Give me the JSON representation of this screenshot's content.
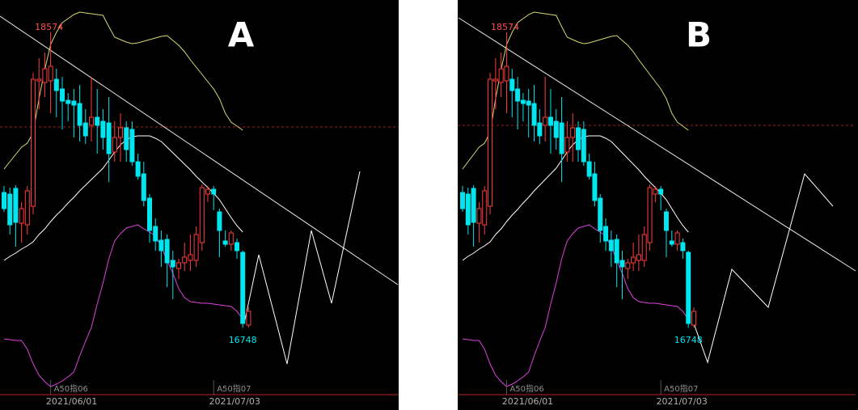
{
  "chart_data": [
    {
      "type": "candlestick",
      "title": "A",
      "categories": [
        null,
        null,
        null,
        null,
        null,
        null,
        null,
        null,
        "2021/06/01",
        null,
        null,
        null,
        null,
        null,
        null,
        null,
        null,
        null,
        null,
        null,
        null,
        null,
        null,
        null,
        null,
        null,
        null,
        null,
        null,
        null,
        null,
        null,
        null,
        null,
        null,
        null,
        "2021/07/03",
        null,
        null,
        null,
        null,
        null,
        null
      ],
      "contracts": [
        null,
        null,
        null,
        null,
        null,
        null,
        null,
        null,
        "A50指06",
        null,
        null,
        null,
        null,
        null,
        null,
        null,
        null,
        null,
        null,
        null,
        null,
        null,
        null,
        null,
        null,
        null,
        null,
        null,
        null,
        null,
        null,
        null,
        null,
        null,
        null,
        null,
        "A50指07",
        null,
        null,
        null,
        null,
        null,
        null
      ],
      "open": [
        17584,
        17574,
        17609,
        17394,
        17384,
        17499,
        18274,
        18264,
        18274,
        18284,
        18224,
        18154,
        18149,
        18134,
        18014,
        17999,
        18049,
        18024,
        18014,
        17834,
        17924,
        17984,
        17974,
        17774,
        17699,
        17549,
        17374,
        17289,
        17294,
        17164,
        17114,
        17149,
        17164,
        17164,
        17274,
        17574,
        17604,
        17464,
        17284,
        17264,
        17274,
        17214,
        16764
      ],
      "high": [
        17624,
        17614,
        17629,
        17524,
        17624,
        18324,
        18414,
        18449,
        18574,
        18349,
        18299,
        18199,
        18224,
        18249,
        18099,
        18299,
        18224,
        18099,
        18174,
        18024,
        18074,
        18024,
        18024,
        17824,
        17774,
        17574,
        17424,
        17349,
        17324,
        17224,
        17174,
        17274,
        17324,
        17374,
        17634,
        17624,
        17624,
        17484,
        17349,
        17349,
        17299,
        17224,
        16874
      ],
      "low": [
        17464,
        17324,
        17249,
        17274,
        17324,
        17449,
        18099,
        18174,
        18074,
        18049,
        17974,
        18024,
        17924,
        17899,
        17884,
        17899,
        17824,
        17849,
        17649,
        17774,
        17774,
        17774,
        17749,
        17664,
        17499,
        17274,
        17224,
        17124,
        16999,
        16924,
        17049,
        17099,
        17099,
        17124,
        17224,
        17524,
        17474,
        17184,
        17249,
        17224,
        17174,
        16748,
        16749
      ],
      "close": [
        17484,
        17384,
        17399,
        17484,
        17594,
        18284,
        18284,
        18349,
        18364,
        18214,
        18149,
        18134,
        18124,
        17999,
        17934,
        18049,
        17999,
        17924,
        17824,
        17924,
        17984,
        17849,
        17774,
        17684,
        17534,
        17349,
        17284,
        17224,
        17149,
        17124,
        17149,
        17184,
        17199,
        17324,
        17614,
        17604,
        17574,
        17349,
        17264,
        17334,
        17224,
        16774,
        16849
      ],
      "up_color": "#ff3c3c",
      "down_color": "#00e5ee",
      "series": [
        {
          "color": "#d8d870",
          "values": [
            17729,
            17774,
            17819,
            17864,
            17889,
            17954,
            18164,
            18344,
            18499,
            18574,
            18634,
            18659,
            18684,
            18699,
            18694,
            18689,
            18684,
            18679,
            18609,
            18544,
            18529,
            18514,
            18504,
            18509,
            18519,
            18529,
            18539,
            18549,
            18554,
            18524,
            18494,
            18454,
            18404,
            18359,
            18314,
            18269,
            18224,
            18164,
            18074,
            18019,
            17994,
            17969,
            null
          ]
        },
        {
          "color": "#ffffff",
          "values": [
            17164,
            17189,
            17209,
            17234,
            17254,
            17279,
            17324,
            17359,
            17404,
            17444,
            17479,
            17519,
            17554,
            17594,
            17629,
            17664,
            17699,
            17734,
            17784,
            17834,
            17879,
            17909,
            17929,
            17934,
            17934,
            17934,
            17919,
            17899,
            17864,
            17829,
            17794,
            17759,
            17724,
            17684,
            17649,
            17614,
            17579,
            17539,
            17484,
            17429,
            17379,
            17339,
            null
          ]
        },
        {
          "color": "#e040e0",
          "values": [
            16679,
            16674,
            16669,
            16669,
            16614,
            16524,
            16454,
            16414,
            16384,
            16399,
            16419,
            16444,
            16474,
            16574,
            16664,
            16749,
            16894,
            17024,
            17174,
            17284,
            17329,
            17364,
            17374,
            17384,
            17359,
            17339,
            17314,
            17249,
            17164,
            17084,
            16989,
            16934,
            16909,
            16904,
            16899,
            16899,
            16894,
            16889,
            16884,
            16879,
            16849,
            16799,
            null
          ]
        }
      ],
      "ylim": [
        16339,
        18774
      ]
    },
    {
      "type": "candlestick",
      "title": "B",
      "categories": [
        null,
        null,
        null,
        null,
        null,
        null,
        null,
        null,
        "2021/06/01",
        null,
        null,
        null,
        null,
        null,
        null,
        null,
        null,
        null,
        null,
        null,
        null,
        null,
        null,
        null,
        null,
        null,
        null,
        null,
        null,
        null,
        null,
        null,
        null,
        null,
        null,
        null,
        "2021/07/03",
        null,
        null,
        null,
        null,
        null,
        null
      ],
      "contracts": [
        null,
        null,
        null,
        null,
        null,
        null,
        null,
        null,
        "A50指06",
        null,
        null,
        null,
        null,
        null,
        null,
        null,
        null,
        null,
        null,
        null,
        null,
        null,
        null,
        null,
        null,
        null,
        null,
        null,
        null,
        null,
        null,
        null,
        null,
        null,
        null,
        null,
        "A50指07",
        null,
        null,
        null,
        null,
        null,
        null
      ],
      "open": [
        17584,
        17574,
        17609,
        17394,
        17384,
        17499,
        18274,
        18264,
        18274,
        18284,
        18224,
        18154,
        18149,
        18134,
        18014,
        17999,
        18049,
        18024,
        18014,
        17834,
        17924,
        17984,
        17974,
        17774,
        17699,
        17549,
        17374,
        17289,
        17294,
        17164,
        17114,
        17149,
        17164,
        17164,
        17274,
        17574,
        17604,
        17464,
        17284,
        17264,
        17274,
        17214,
        16764
      ],
      "high": [
        17624,
        17614,
        17629,
        17524,
        17624,
        18324,
        18414,
        18449,
        18574,
        18349,
        18299,
        18199,
        18224,
        18249,
        18099,
        18299,
        18224,
        18099,
        18174,
        18024,
        18074,
        18024,
        18024,
        17824,
        17774,
        17574,
        17424,
        17349,
        17324,
        17224,
        17174,
        17274,
        17324,
        17374,
        17634,
        17624,
        17624,
        17484,
        17349,
        17349,
        17299,
        17224,
        16874
      ],
      "low": [
        17464,
        17324,
        17249,
        17274,
        17324,
        17449,
        18099,
        18174,
        18074,
        18049,
        17974,
        18024,
        17924,
        17899,
        17884,
        17899,
        17824,
        17849,
        17649,
        17774,
        17774,
        17774,
        17749,
        17664,
        17499,
        17274,
        17224,
        17124,
        16999,
        16924,
        17049,
        17099,
        17099,
        17124,
        17224,
        17524,
        17474,
        17184,
        17249,
        17224,
        17174,
        16748,
        16749
      ],
      "close": [
        17484,
        17384,
        17399,
        17484,
        17594,
        18284,
        18284,
        18349,
        18364,
        18214,
        18149,
        18134,
        18124,
        17999,
        17934,
        18049,
        17999,
        17924,
        17824,
        17924,
        17984,
        17849,
        17774,
        17684,
        17534,
        17349,
        17284,
        17224,
        17149,
        17124,
        17149,
        17184,
        17199,
        17324,
        17614,
        17604,
        17574,
        17349,
        17264,
        17334,
        17224,
        16774,
        16849
      ],
      "up_color": "#ff3c3c",
      "down_color": "#00e5ee",
      "series": [
        {
          "color": "#d8d870",
          "values": [
            17729,
            17774,
            17819,
            17864,
            17889,
            17954,
            18164,
            18344,
            18499,
            18574,
            18634,
            18659,
            18684,
            18699,
            18694,
            18689,
            18684,
            18679,
            18609,
            18544,
            18529,
            18514,
            18504,
            18509,
            18519,
            18529,
            18539,
            18549,
            18554,
            18524,
            18494,
            18454,
            18404,
            18359,
            18314,
            18269,
            18224,
            18164,
            18074,
            18019,
            17994,
            17969,
            null
          ]
        },
        {
          "color": "#ffffff",
          "values": [
            17164,
            17189,
            17209,
            17234,
            17254,
            17279,
            17324,
            17359,
            17404,
            17444,
            17479,
            17519,
            17554,
            17594,
            17629,
            17664,
            17699,
            17734,
            17784,
            17834,
            17879,
            17909,
            17929,
            17934,
            17934,
            17934,
            17919,
            17899,
            17864,
            17829,
            17794,
            17759,
            17724,
            17684,
            17649,
            17614,
            17579,
            17539,
            17484,
            17429,
            17379,
            17339,
            null
          ]
        },
        {
          "color": "#e040e0",
          "values": [
            16679,
            16674,
            16669,
            16669,
            16614,
            16524,
            16454,
            16414,
            16384,
            16399,
            16419,
            16444,
            16474,
            16574,
            16664,
            16749,
            16894,
            17024,
            17174,
            17284,
            17329,
            17364,
            17374,
            17384,
            17359,
            17339,
            17314,
            17249,
            17164,
            17084,
            16989,
            16934,
            16909,
            16904,
            16899,
            16899,
            16894,
            16889,
            16884,
            16879,
            16849,
            16799,
            null
          ]
        }
      ],
      "ylim": [
        16339,
        18774
      ]
    }
  ]
}
